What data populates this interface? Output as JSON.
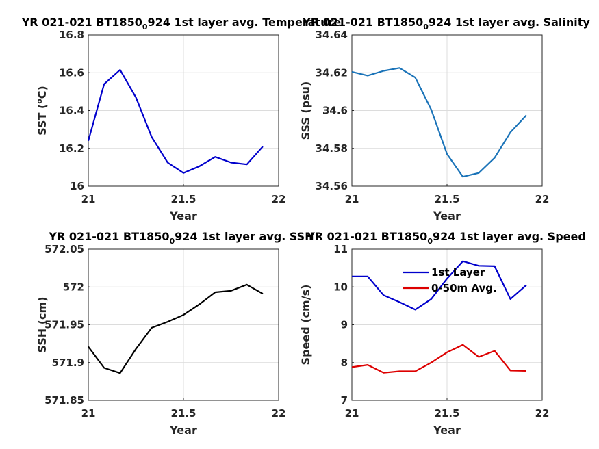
{
  "chart_data": [
    {
      "type": "line",
      "title": "YR 021-021 BT1850",
      "title_sub": "0",
      "title_rest": "924 1st layer avg. Temperature",
      "xlabel": "Year",
      "ylabel": "SST (",
      "ylabel_sup": "o",
      "ylabel_rest": "C)",
      "xlim": [
        21,
        22
      ],
      "ylim": [
        16,
        16.8
      ],
      "xticks": [
        "21",
        "21.5",
        "22"
      ],
      "yticks": [
        "16",
        "16.2",
        "16.4",
        "16.6",
        "16.8"
      ],
      "grid": true,
      "series": [
        {
          "color": "#0000cc",
          "x": [
            21.0,
            21.083,
            21.167,
            21.25,
            21.333,
            21.417,
            21.5,
            21.583,
            21.667,
            21.75,
            21.833,
            21.917
          ],
          "y": [
            16.24,
            16.54,
            16.615,
            16.47,
            16.26,
            16.125,
            16.07,
            16.105,
            16.155,
            16.125,
            16.115,
            16.21
          ]
        }
      ]
    },
    {
      "type": "line",
      "title": "YR 021-021 BT1850",
      "title_sub": "0",
      "title_rest": "924 1st layer avg. Salinity",
      "xlabel": "Year",
      "ylabel": "SSS (psu)",
      "xlim": [
        21,
        22
      ],
      "ylim": [
        34.56,
        34.64
      ],
      "xticks": [
        "21",
        "21.5",
        "22"
      ],
      "yticks": [
        "34.56",
        "34.58",
        "34.6",
        "34.62",
        "34.64"
      ],
      "grid": true,
      "series": [
        {
          "color": "#1a73b8",
          "x": [
            21.0,
            21.083,
            21.167,
            21.25,
            21.333,
            21.417,
            21.5,
            21.583,
            21.667,
            21.75,
            21.833,
            21.917
          ],
          "y": [
            34.6205,
            34.6185,
            34.621,
            34.6225,
            34.6175,
            34.6005,
            34.577,
            34.565,
            34.567,
            34.575,
            34.5885,
            34.5975
          ]
        }
      ]
    },
    {
      "type": "line",
      "title": "YR 021-021 BT1850",
      "title_sub": "0",
      "title_rest": "924 1st layer avg. SSH",
      "xlabel": "Year",
      "ylabel": "SSH (cm)",
      "xlim": [
        21,
        22
      ],
      "ylim": [
        571.85,
        572.05
      ],
      "xticks": [
        "21",
        "21.5",
        "22"
      ],
      "yticks": [
        "571.85",
        "571.9",
        "571.95",
        "572",
        "572.05"
      ],
      "grid": true,
      "series": [
        {
          "color": "#000000",
          "x": [
            21.0,
            21.083,
            21.167,
            21.25,
            21.333,
            21.417,
            21.5,
            21.583,
            21.667,
            21.75,
            21.833,
            21.917
          ],
          "y": [
            571.921,
            571.893,
            571.886,
            571.918,
            571.946,
            571.954,
            571.963,
            571.977,
            571.993,
            571.995,
            572.003,
            571.991
          ]
        }
      ]
    },
    {
      "type": "line",
      "title": "YR 021-021 BT1850",
      "title_sub": "0",
      "title_rest": "924 1st layer avg. Speed",
      "xlabel": "Year",
      "ylabel": "Speed (cm/s)",
      "xlim": [
        21,
        22
      ],
      "ylim": [
        7,
        11
      ],
      "xticks": [
        "21",
        "21.5",
        "22"
      ],
      "yticks": [
        "7",
        "8",
        "9",
        "10",
        "11"
      ],
      "grid": true,
      "legend": "top-right",
      "series": [
        {
          "name": "1st Layer",
          "color": "#0000cc",
          "x": [
            21.0,
            21.083,
            21.167,
            21.25,
            21.333,
            21.417,
            21.5,
            21.583,
            21.667,
            21.75,
            21.833,
            21.917
          ],
          "y": [
            10.28,
            10.28,
            9.78,
            9.6,
            9.4,
            9.68,
            10.22,
            10.68,
            10.56,
            10.55,
            9.68,
            10.05
          ]
        },
        {
          "name": "0-50m Avg.",
          "color": "#dd0000",
          "x": [
            21.0,
            21.083,
            21.167,
            21.25,
            21.333,
            21.417,
            21.5,
            21.583,
            21.667,
            21.75,
            21.833,
            21.917
          ],
          "y": [
            7.88,
            7.94,
            7.73,
            7.77,
            7.77,
            8.0,
            8.27,
            8.47,
            8.15,
            8.31,
            7.79,
            7.78
          ]
        }
      ]
    }
  ]
}
